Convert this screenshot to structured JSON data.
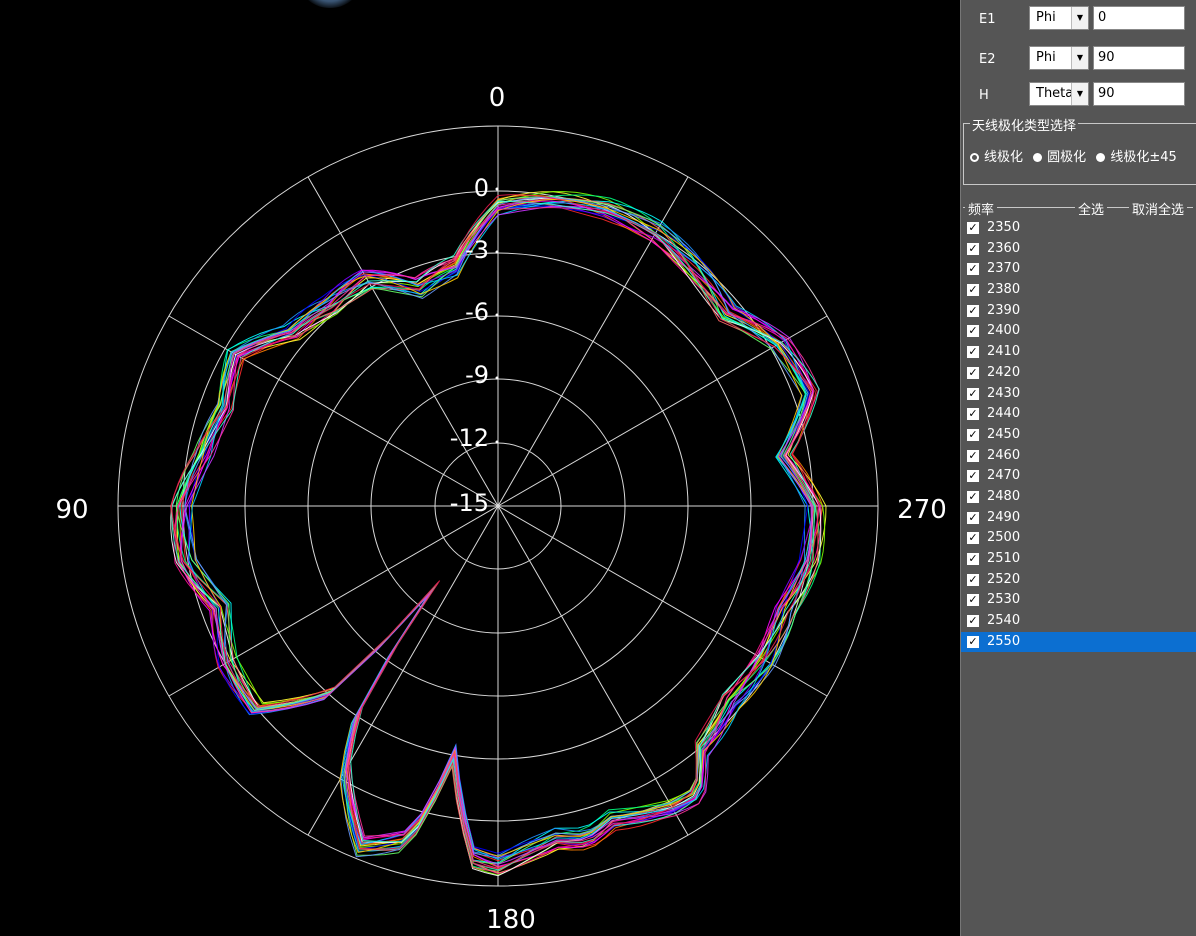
{
  "plot": {
    "angle_labels": {
      "top": "0",
      "left": "90",
      "right": "270",
      "bottom": "180"
    },
    "radial_labels": [
      "0",
      "-3",
      "-6",
      "-9",
      "-12",
      "-15"
    ],
    "background": "#000000",
    "grid_color": "#d9d9d9"
  },
  "panel": {
    "rows": [
      {
        "label": "E1",
        "select": "Phi",
        "value": "0"
      },
      {
        "label": "E2",
        "select": "Phi",
        "value": "90"
      },
      {
        "label": "H",
        "select": "Theta",
        "value": "90"
      }
    ],
    "polarization": {
      "title": "天线极化类型选择",
      "options": [
        "线极化",
        "圆极化",
        "线极化±45"
      ]
    },
    "freq": {
      "title": "频率",
      "select_all": "全选",
      "deselect_all": "取消全选",
      "items": [
        "2350",
        "2360",
        "2370",
        "2380",
        "2390",
        "2400",
        "2410",
        "2420",
        "2430",
        "2440",
        "2450",
        "2460",
        "2470",
        "2480",
        "2490",
        "2500",
        "2510",
        "2520",
        "2530",
        "2540",
        "2550"
      ],
      "selected_index": 20
    }
  },
  "chart_data": {
    "type": "polar",
    "r_ticks": [
      0,
      -3,
      -6,
      -9,
      -12,
      -15
    ],
    "r_range": [
      -18,
      0
    ],
    "theta_ticks": [
      0,
      90,
      180,
      270
    ],
    "series_names": [
      "2350",
      "2360",
      "2370",
      "2380",
      "2390",
      "2400",
      "2410",
      "2420",
      "2430",
      "2440",
      "2450",
      "2460",
      "2470",
      "2480",
      "2490",
      "2500",
      "2510",
      "2520",
      "2530",
      "2540",
      "2550"
    ],
    "series_colors": [
      "#ff2a2a",
      "#ff7f00",
      "#ffff33",
      "#7fff00",
      "#00ff7f",
      "#00ffff",
      "#1e90ff",
      "#0000ff",
      "#7f00ff",
      "#ff00ff",
      "#ff1493",
      "#ffffff",
      "#ff6666",
      "#66ff66",
      "#6699ff",
      "#ffcc00",
      "#00ccff",
      "#cc33ff",
      "#ff3399",
      "#33ffcc",
      "#e6194b"
    ],
    "base_pattern": {
      "theta_deg": [
        0,
        10,
        20,
        30,
        40,
        50,
        60,
        70,
        80,
        90,
        100,
        110,
        120,
        130,
        138,
        142,
        146,
        150,
        158,
        165,
        170,
        176,
        180,
        185,
        190,
        195,
        200,
        210,
        215,
        220,
        230,
        240,
        250,
        260,
        270,
        280,
        290,
        300,
        310,
        320,
        330,
        340,
        350
      ],
      "r_db": [
        -3.8,
        -6.5,
        -7.0,
        -5.6,
        -5.6,
        -5.2,
        -3.6,
        -4.2,
        -3.8,
        -3.0,
        -3.0,
        -4.0,
        -3.2,
        -3.0,
        -6.0,
        -13.0,
        -6.0,
        -3.5,
        -0.6,
        -1.6,
        -6.0,
        -1.3,
        -1.0,
        -1.6,
        -2.0,
        -1.7,
        -2.2,
        -1.5,
        -1.4,
        -3.0,
        -3.6,
        -3.4,
        -3.5,
        -3.0,
        -3.0,
        -4.3,
        -2.3,
        -2.6,
        -3.8,
        -3.4,
        -3.0,
        -3.0,
        -3.3
      ]
    }
  }
}
